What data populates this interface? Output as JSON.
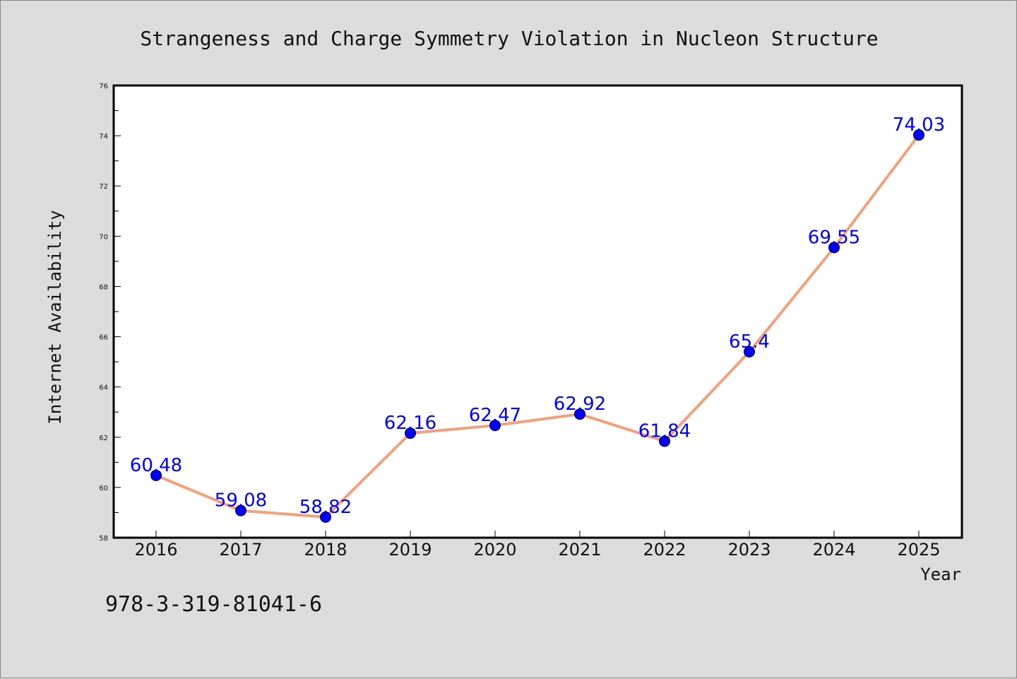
{
  "chart_data": {
    "type": "line",
    "title": "Strangeness and Charge Symmetry Violation in Nucleon Structure",
    "xlabel": "Year",
    "ylabel": "Internet Availability",
    "categories": [
      "2016",
      "2017",
      "2018",
      "2019",
      "2020",
      "2021",
      "2022",
      "2023",
      "2024",
      "2025"
    ],
    "series": [
      {
        "values": [
          60.48,
          59.08,
          58.82,
          62.16,
          62.47,
          62.92,
          61.84,
          65.4,
          69.55,
          74.03
        ],
        "data_labels": [
          "60.48",
          "59.08",
          "58.82",
          "62.16",
          "62.47",
          "62.92",
          "61.84",
          "65.4",
          "69.55",
          "74.03"
        ]
      }
    ],
    "ylim": [
      58,
      76
    ],
    "yticks": [
      "58",
      "60",
      "62",
      "64",
      "66",
      "68",
      "70",
      "72",
      "74",
      "76"
    ],
    "grid": false,
    "colors": {
      "line": "#f4a07a",
      "marker": "#0000ff",
      "label": "#0000ff",
      "background": "#dcdcdc",
      "plot_background": "#ffffff"
    }
  },
  "footer": {
    "isbn": "978-3-319-81041-6"
  }
}
